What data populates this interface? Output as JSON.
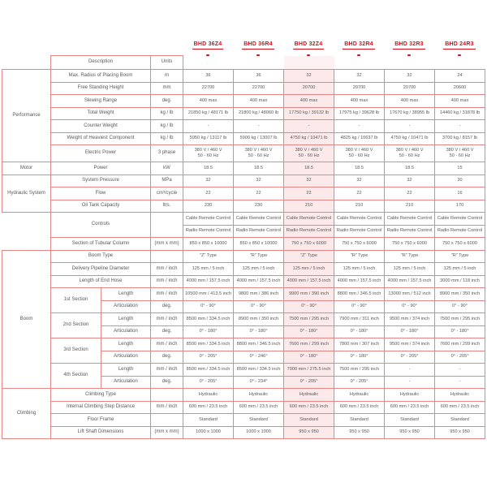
{
  "colors": {
    "accent_red": "#d8101c",
    "border_red": "#e28785",
    "highlight_bg": "#fbeae9",
    "text_gray": "#58585a"
  },
  "header": {
    "description_label": "Description",
    "units_label": "Units"
  },
  "models": [
    "BHD 36Z4",
    "BHD 36R4",
    "BHD 32Z4",
    "BHD 32R4",
    "BHD 32R3",
    "BHD 24R3"
  ],
  "highlighted_model": "BHD 32Z4",
  "highlighted_model_index": 2,
  "rows": [
    {
      "g": "Performance",
      "gs": 7,
      "d": "Max. Radius of Placing Boom",
      "u": "m",
      "v": [
        "36",
        "36",
        "32",
        "32",
        "32",
        "24"
      ]
    },
    {
      "d": "Free Standing Height",
      "u": "mm",
      "v": [
        "22700",
        "22700",
        "20700",
        "20700",
        "20700",
        "20600"
      ]
    },
    {
      "d": "Slewing Range",
      "u": "deg.",
      "v": [
        "400 max",
        "400 max",
        "400 max",
        "400 max",
        "400 max",
        "400 max"
      ]
    },
    {
      "d": "Total Weight",
      "u": "kg / lb",
      "v": [
        "21850 kg / 48171 lb",
        "21800 kg / 48060 lb",
        "17750 kg / 39132 lb",
        "17975 kg / 39628 lb",
        "17670 kg / 38955 lb",
        "14460 kg / 31878 lb"
      ]
    },
    {
      "d": "Counter Weight",
      "u": "kg / lb",
      "v": [
        "-",
        "-",
        "-",
        "-",
        "-",
        "-"
      ]
    },
    {
      "d": "Weight of Heaviest Component",
      "u": "kg / lb",
      "v": [
        "5950 kg / 13117 lb",
        "5900 kg / 13007 lb",
        "4750 kg / 10471 lb",
        "4825 kg / 10637 lb",
        "4750 kg / 10471 lb",
        "3700 kg / 8157 lb"
      ]
    },
    {
      "d": "Electric Power",
      "u": "3 phase",
      "tall": true,
      "v": [
        "380 V / 460 V\n50 - 60 Hz",
        "380 V / 460 V\n50 - 60 Hz",
        "380 V / 460 V\n50 - 60 Hz",
        "380 V / 460 V\n50 - 60 Hz",
        "380 V / 460 V\n50 - 60 Hz",
        "380 V / 460 V\n50 - 60 Hz"
      ]
    },
    {
      "g": "Motor",
      "gs": 1,
      "d": "Power",
      "u": "kW",
      "v": [
        "18.5",
        "18.5",
        "18.5",
        "18.5",
        "18.5",
        "15"
      ]
    },
    {
      "g": "Hydraulic System",
      "gs": 3,
      "d": "System Pressure",
      "u": "MPa",
      "v": [
        "32",
        "32",
        "32",
        "32",
        "32",
        "30"
      ]
    },
    {
      "d": "Flow",
      "u": "cm³/cycle",
      "v": [
        "22",
        "22",
        "22",
        "22",
        "22",
        "16"
      ]
    },
    {
      "d": "Oil Tank Capacity",
      "u": "ltrs.",
      "v": [
        "230",
        "230",
        "210",
        "210",
        "210",
        "170"
      ]
    },
    {
      "g": "",
      "gs": 3,
      "gblank": true,
      "d": "Controls",
      "drs": 2,
      "u": "",
      "urs": 2,
      "v": [
        "Cable Remote Control",
        "Cable Remote Control",
        "Cable Remote Control",
        "Cable Remote Control",
        "Cable Remote Control",
        "Cable Remote Control"
      ]
    },
    {
      "v": [
        "Radio Remote Control",
        "Radio Remote Control",
        "Radio Remote Control",
        "Radio Remote Control",
        "Radio Remote Control",
        "Radio Remote Control"
      ]
    },
    {
      "d": "Section of Tubular Column",
      "u": "(mm x mm)",
      "v": [
        "850 x 850 x 10000",
        "850 x 850 x 10000",
        "750 x 750 x 6000",
        "750 x 750 x 6000",
        "750 x 750 x 6000",
        "750 x 750 x 6000"
      ]
    },
    {
      "g": "Boom",
      "gs": 11,
      "d": "Boom Type",
      "u": "",
      "v": [
        "\"Z\" Type",
        "\"R\" Type",
        "\"Z\" Type",
        "\"R\" Type",
        "\"R\" Type",
        "\"R\" Type"
      ]
    },
    {
      "d": "Delivery Pipeline Diameter",
      "u": "mm / inch",
      "v": [
        "125 mm / 5 inch",
        "125 mm / 5 inch",
        "125 mm / 5 inch",
        "125 mm / 5 inch",
        "125 mm / 5 inch",
        "125 mm / 5 inch"
      ]
    },
    {
      "d": "Length of End Hose",
      "u": "mm / inch",
      "v": [
        "4000 mm / 157.5 inch",
        "4000 mm / 157.5 inch",
        "4000 mm / 157.5 inch",
        "4000 mm / 157.5 inch",
        "4000 mm / 157.5 inch",
        "3000 mm / 118 inch"
      ]
    },
    {
      "d": "1st Section",
      "dc": 1,
      "drs": 2,
      "sub": "Length",
      "u": "mm / inch",
      "v": [
        "10500 mm / 413.5 inch",
        "9800 mm / 386 inch",
        "9900 mm / 390 inch",
        "8800 mm / 346.5 inch",
        "13000 mm / 512 inch",
        "8900 mm / 350 inch"
      ]
    },
    {
      "sub": "Articulation",
      "u": "deg.",
      "v": [
        "0° - 90°",
        "0° - 90°",
        "0° - 90°",
        "0° - 90°",
        "0° - 90°",
        "0° - 90°"
      ]
    },
    {
      "d": "2nd Section",
      "dc": 1,
      "drs": 2,
      "sub": "Length",
      "u": "mm / inch",
      "v": [
        "8500 mm / 334.5 inch",
        "8900 mm / 350 inch",
        "7500 mm / 295 inch",
        "7900 mm / 311 inch",
        "9500 mm / 374 inch",
        "7500 mm / 295 inch"
      ]
    },
    {
      "sub": "Articulation",
      "u": "deg.",
      "v": [
        "0° - 180°",
        "0° - 180°",
        "0° - 180°",
        "0° - 180°",
        "0° - 180°",
        "0° - 180°"
      ]
    },
    {
      "d": "3rd Section",
      "dc": 1,
      "drs": 2,
      "sub": "Length",
      "u": "mm / inch",
      "v": [
        "8500 mm / 334.5 inch",
        "8800 mm / 346.5 inch",
        "7600 mm / 299 inch",
        "7800 mm / 307 inch",
        "9500 mm / 374 inch",
        "7600 mm / 299 inch"
      ]
    },
    {
      "sub": "Articulation",
      "u": "deg.",
      "v": [
        "0° - 205°",
        "0° - 246°",
        "0° - 180°",
        "0° - 180°",
        "0° - 205°",
        "0° - 205°"
      ]
    },
    {
      "d": "4th Section",
      "dc": 1,
      "drs": 2,
      "sub": "Length",
      "u": "mm / inch",
      "v": [
        "8500 mm / 334.5 inch",
        "8500 mm / 334.5 inch",
        "7000 mm / 275.5 inch",
        "7500 mm / 295 inch",
        "-",
        "-"
      ]
    },
    {
      "sub": "Articulation",
      "u": "deg.",
      "v": [
        "0° - 205°",
        "0° - 234°",
        "0° - 205°",
        "0° - 205°",
        "-",
        "-"
      ]
    },
    {
      "g": "Climbing",
      "gs": 4,
      "d": "Climbing Type",
      "u": "",
      "v": [
        "Hydraulic",
        "Hydraulic",
        "Hydraulic",
        "Hydraulic",
        "Hydraulic",
        "Hydraulic"
      ]
    },
    {
      "d": "Internal Climbing Step Distance",
      "u": "mm / inch",
      "v": [
        "600 mm / 23.5 inch",
        "600 mm / 23.5 inch",
        "600 mm / 23.5 inch",
        "600 mm / 23.5 inch",
        "600 mm / 23.5 inch",
        "600 mm / 23.5 inch"
      ]
    },
    {
      "d": "Floor Frame",
      "u": "",
      "v": [
        "Standard",
        "Standard",
        "Standard",
        "Standard",
        "Standard",
        "Standard"
      ]
    },
    {
      "d": "Lift Shaft Dimensions",
      "u": "(mm x mm)",
      "v": [
        "1000 x 1000",
        "1000 x 1000",
        "950 x 950",
        "950 x 950",
        "950 x 950",
        "950 x 950"
      ]
    }
  ]
}
